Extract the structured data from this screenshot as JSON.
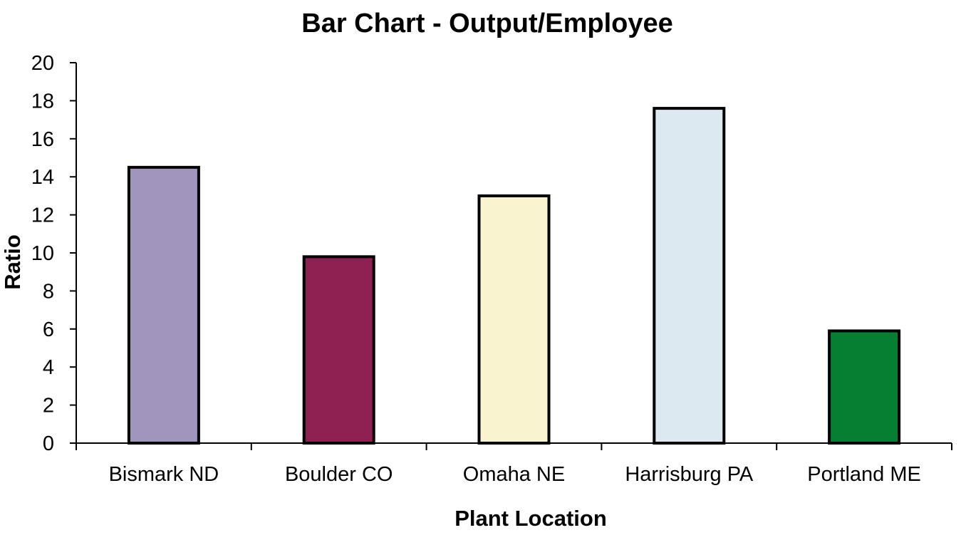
{
  "chart_data": {
    "type": "bar",
    "title": "Bar Chart - Output/Employee",
    "xlabel": "Plant Location",
    "ylabel": "Ratio",
    "categories": [
      "Bismark ND",
      "Boulder CO",
      "Omaha NE",
      "Harrisburg PA",
      "Portland ME"
    ],
    "values": [
      14.5,
      9.8,
      13.0,
      17.6,
      5.9
    ],
    "colors": [
      "#a195bd",
      "#8e2052",
      "#faf3cf",
      "#dde9f1",
      "#067f32"
    ],
    "ylim": [
      0,
      20
    ],
    "yticks": [
      "0",
      "2",
      "4",
      "6",
      "8",
      "10",
      "12",
      "14",
      "16",
      "18",
      "20"
    ],
    "grid": false,
    "legend": "none"
  }
}
